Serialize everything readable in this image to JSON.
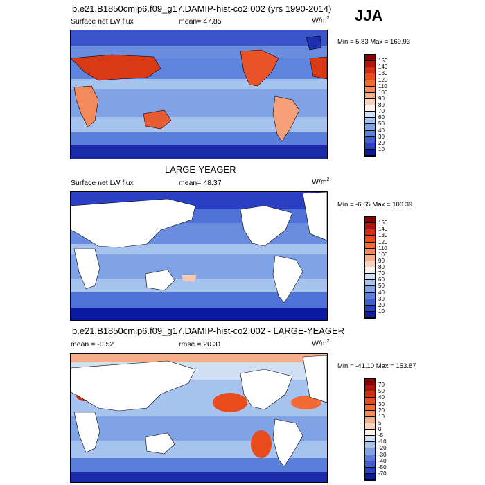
{
  "season": "JJA",
  "panels": [
    {
      "title": "b.e21.B1850cmip6.f09_g17.DAMIP-hist-co2.002 (yrs 1990-2014)",
      "left_label": "Surface net LW flux",
      "mid_label": "mean=  47.85",
      "units_base": "W/m",
      "units_exp": "2",
      "minmax": "Min =   5.83 Max = 169.93",
      "colorbar_ticks": [
        "150",
        "140",
        "130",
        "120",
        "110",
        "100",
        "90",
        "80",
        "70",
        "60",
        "50",
        "40",
        "30",
        "20",
        "10"
      ],
      "colorbar_colors": [
        "#8b0000",
        "#b3130a",
        "#d0300e",
        "#e84b1c",
        "#f26a35",
        "#f58a5c",
        "#f7ad8a",
        "#fad2bb",
        "#fdf2ea",
        "#cfe0f5",
        "#a8c4ee",
        "#7fa3e6",
        "#5a80dc",
        "#3f5ed2",
        "#2a3fc4",
        "#0b1a9e"
      ]
    },
    {
      "title": "LARGE-YEAGER",
      "left_label": "Surface net LW flux",
      "mid_label": "mean=  48.37",
      "units_base": "W/m",
      "units_exp": "2",
      "minmax": "Min =  -6.65 Max = 100.39",
      "colorbar_ticks": [
        "150",
        "140",
        "130",
        "120",
        "110",
        "100",
        "90",
        "80",
        "70",
        "60",
        "50",
        "40",
        "30",
        "20",
        "10"
      ],
      "colorbar_colors": [
        "#8b0000",
        "#b3130a",
        "#d0300e",
        "#e84b1c",
        "#f26a35",
        "#f58a5c",
        "#f7ad8a",
        "#fad2bb",
        "#fdf2ea",
        "#cfe0f5",
        "#a8c4ee",
        "#7fa3e6",
        "#5a80dc",
        "#3f5ed2",
        "#2a3fc4",
        "#0b1a9e"
      ]
    },
    {
      "title": "b.e21.B1850cmip6.f09_g17.DAMIP-hist-co2.002 - LARGE-YEAGER",
      "left_label": "mean =  -0.52",
      "mid_label": "rmse =  20.31",
      "units_base": "W/m",
      "units_exp": "2",
      "minmax": "Min = -41.10 Max = 153.87",
      "colorbar_ticks": [
        "70",
        "50",
        "40",
        "30",
        "20",
        "10",
        "5",
        "0",
        "-5",
        "-10",
        "-20",
        "-30",
        "-40",
        "-50",
        "-70"
      ],
      "colorbar_colors": [
        "#8b0000",
        "#b3130a",
        "#d0300e",
        "#e84b1c",
        "#f26a35",
        "#f58a5c",
        "#f7ad8a",
        "#fad2bb",
        "#fdf2ea",
        "#cfe0f5",
        "#a8c4ee",
        "#7fa3e6",
        "#5a80dc",
        "#3f5ed2",
        "#2a3fc4",
        "#0b1a9e"
      ]
    }
  ]
}
